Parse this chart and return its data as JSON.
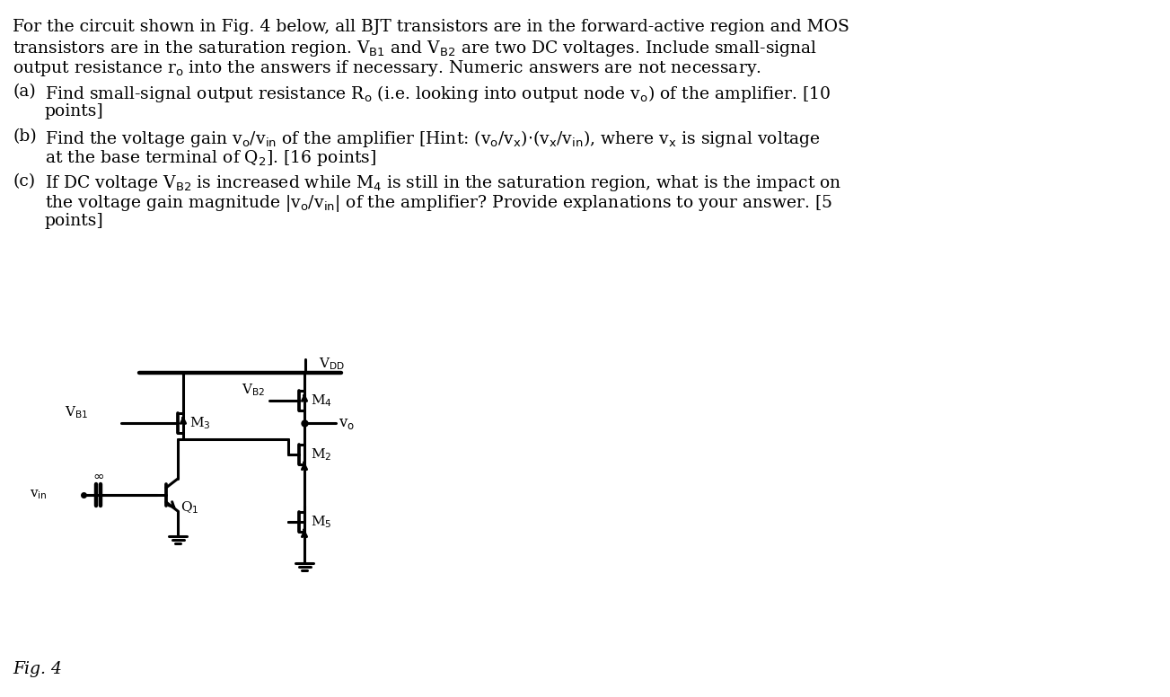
{
  "title_text": "For the circuit shown in Fig. 4 below, all BJT transistors are in the forward-active region and MOS\ntransistors are in the saturation region. VB1 and VB2 are two DC voltages. Include small-signal\noutput resistance ro into the answers if necessary. Numeric answers are not necessary.",
  "part_a": "(a)\tFind small-signal output resistance Ro (i.e. looking into output node vo) of the amplifier. [10\n\tpoints]",
  "part_b": "(b)\tFind the voltage gain vo/vin of the amplifier [Hint: (vo/vx)·(vx/vin), where vx is signal voltage\n\tat the base terminal of Q2]. [16 points]",
  "part_c": "(c)\tIf DC voltage VB2 is increased while M4 is still in the saturation region, what is the impact on\n\tthe voltage gain magnitude |vo/vin| of the amplifier? Provide explanations to your answer. [5\n\tpoints]",
  "fig_label": "Fig. 4",
  "bg_color": "#ffffff",
  "text_color": "#000000",
  "lw": 2.2
}
